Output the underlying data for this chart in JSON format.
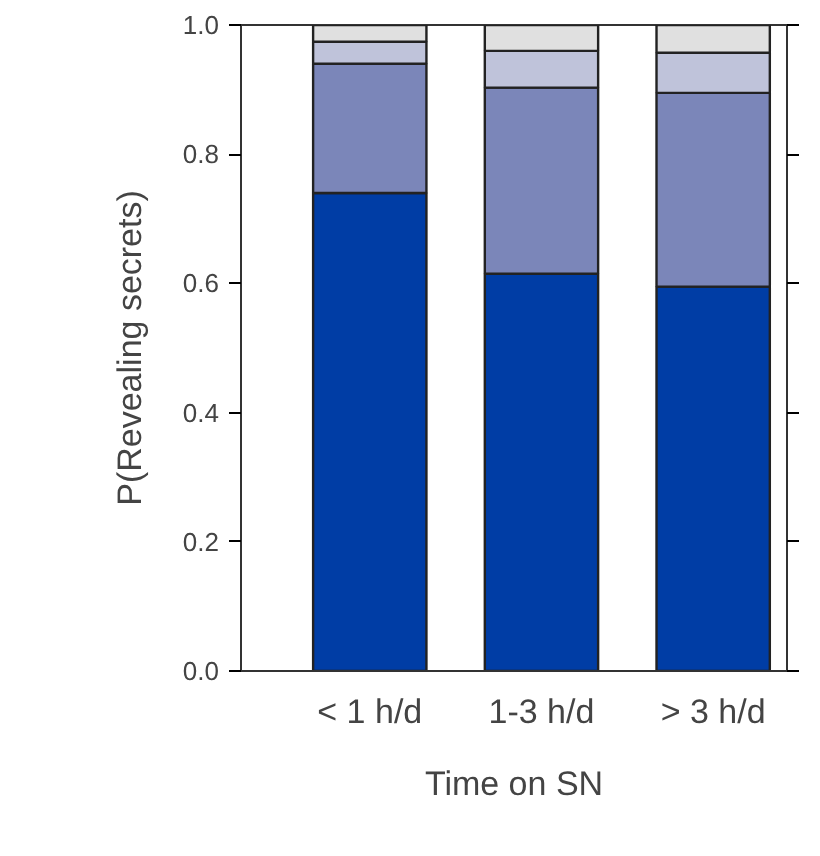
{
  "chart_data": {
    "type": "bar",
    "stacked": true,
    "xlabel": "Time on SN",
    "ylabel": "P(Revealing secrets)",
    "categories": [
      "< 1 h/d",
      "1-3 h/d",
      "> 3 h/d"
    ],
    "series": [
      {
        "color": "#003da5",
        "values": [
          0.74,
          0.615,
          0.595
        ]
      },
      {
        "color": "#7b86b9",
        "values": [
          0.2,
          0.288,
          0.3
        ]
      },
      {
        "color": "#bfc3da",
        "values": [
          0.034,
          0.057,
          0.062
        ]
      },
      {
        "color": "#e0e0e0",
        "values": [
          0.026,
          0.04,
          0.043
        ]
      }
    ],
    "ylim": [
      0,
      1
    ],
    "yticks": [
      {
        "value": 0,
        "label": "0.0"
      },
      0.2,
      0.4,
      0.6,
      0.8,
      {
        "value": 1,
        "label": "1.0"
      }
    ],
    "grid": false
  }
}
